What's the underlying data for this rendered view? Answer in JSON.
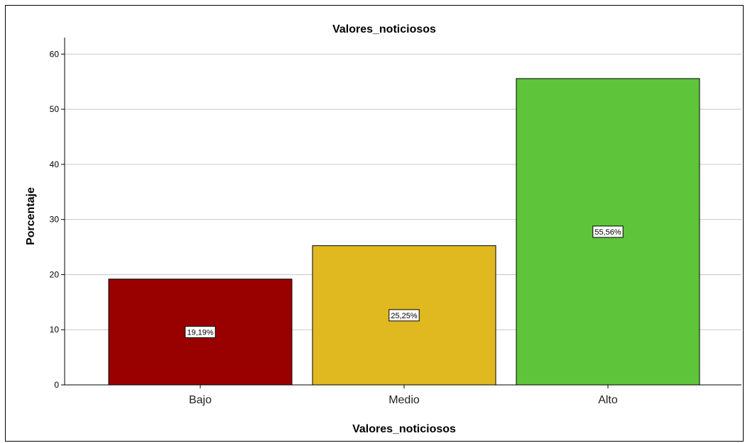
{
  "chart_data": {
    "type": "bar",
    "title": "Valores_noticiosos",
    "xlabel": "Valores_noticiosos",
    "ylabel": "Porcentaje",
    "categories": [
      "Bajo",
      "Medio",
      "Alto"
    ],
    "values": [
      19.19,
      25.25,
      55.56
    ],
    "data_labels": [
      "19,19%",
      "25,25%",
      "55,56%"
    ],
    "colors": [
      "#990000",
      "#e0b820",
      "#5ec43a"
    ],
    "yticks": [
      0,
      10,
      20,
      30,
      40,
      50,
      60
    ],
    "ylim": [
      0,
      63
    ],
    "grid": true,
    "legend": "none"
  }
}
